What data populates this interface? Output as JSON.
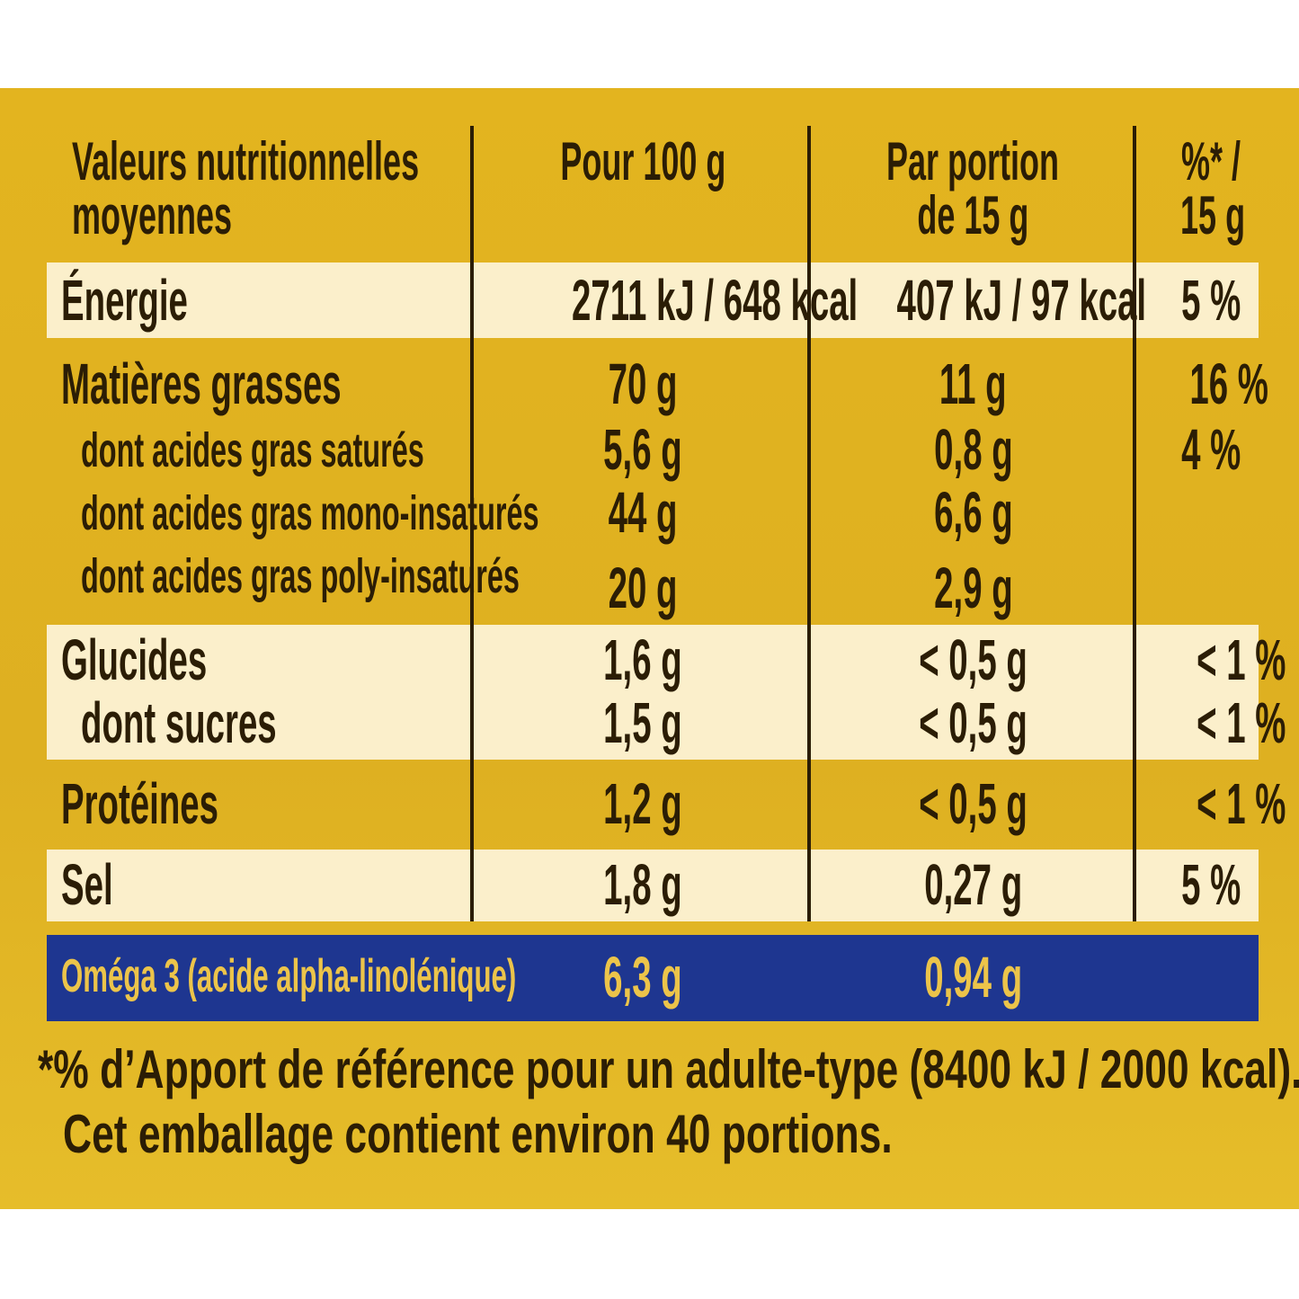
{
  "header": {
    "columns": [
      [
        "Valeurs nutritionnelles",
        "moyennes"
      ],
      [
        "Pour 100 g"
      ],
      [
        "Par portion",
        "de 15 g"
      ],
      [
        "%* /",
        "15 g"
      ]
    ]
  },
  "rows": [
    {
      "label": "Énergie",
      "per_100g": "2711 kJ / 648 kcal",
      "per_portion": "407 kJ / 97 kcal",
      "ri": "5 %"
    },
    {
      "label": "Matières grasses",
      "per_100g": "70 g",
      "per_portion": "11 g",
      "ri": "16 %"
    },
    {
      "label": "dont acides gras saturés",
      "per_100g": "5,6 g",
      "per_portion": "0,8 g",
      "ri": "4 %"
    },
    {
      "label": "dont acides gras mono-insaturés",
      "per_100g": "44 g",
      "per_portion": "6,6 g"
    },
    {
      "label": "dont acides gras poly-insaturés",
      "per_100g": "20 g",
      "per_portion": "2,9 g"
    },
    {
      "label": "Glucides",
      "per_100g": "1,6 g",
      "per_portion": "< 0,5 g",
      "ri": "< 1 %"
    },
    {
      "label": "dont sucres",
      "per_100g": "1,5 g",
      "per_portion": "< 0,5 g",
      "ri": "< 1 %"
    },
    {
      "label": "Protéines",
      "per_100g": "1,2 g",
      "per_portion": "< 0,5 g",
      "ri": "< 1 %"
    },
    {
      "label": "Sel",
      "per_100g": "1,8 g",
      "per_portion": "0,27 g",
      "ri": "5 %"
    }
  ],
  "omega": {
    "label": "Oméga 3 (acide alpha-linolénique)",
    "per_100g": "6,3 g",
    "per_portion": "0,94 g"
  },
  "footnote": [
    "*% d’Apport de référence pour un adulte-type (8400 kJ / 2000 kcal).",
    "Cet emballage contient environ 40 portions."
  ]
}
